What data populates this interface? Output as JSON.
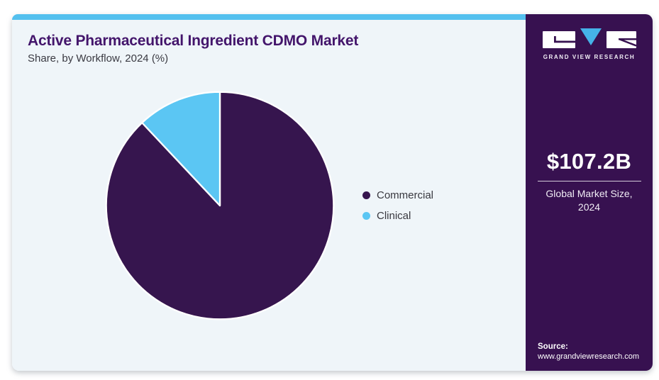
{
  "chart_data": {
    "type": "pie",
    "title": "Active Pharmaceutical Ingredient CDMO Market",
    "subtitle": "Share, by Workflow, 2024 (%)",
    "unit": "%",
    "segments": [
      {
        "label": "Commercial",
        "value": 88,
        "color": "#36154E"
      },
      {
        "label": "Clinical",
        "value": 12,
        "color": "#5BC6F3"
      }
    ],
    "start_angle_deg": 0,
    "direction": "clockwise",
    "legend_position": "right",
    "data_labels_shown": false
  },
  "sidebar": {
    "brand": "GRAND VIEW RESEARCH",
    "stat_value": "$107.2B",
    "stat_label": "Global Market Size, 2024",
    "source_label": "Source:",
    "source_url": "www.grandviewresearch.com"
  },
  "colors": {
    "accent-blue": "#54C0EE",
    "pie-purple": "#36154E",
    "pie-blue": "#5BC6F3",
    "logo-blue": "#45B2E8",
    "sidebar-bg": "#371150",
    "title-color": "#43156B",
    "card-bg": "#EFF5F9"
  }
}
